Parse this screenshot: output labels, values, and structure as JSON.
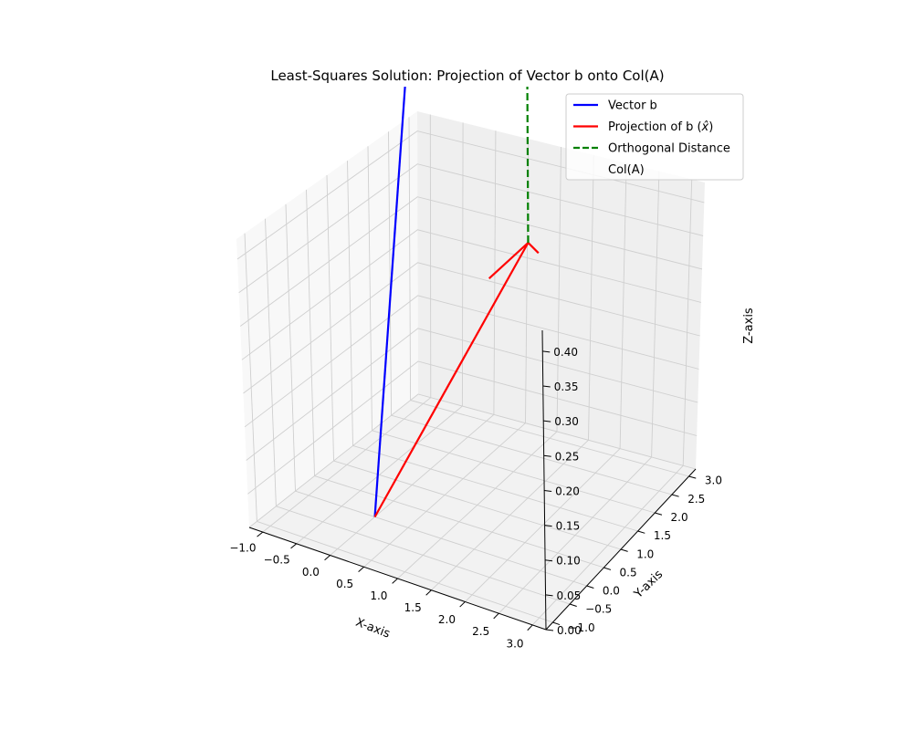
{
  "chart_data": {
    "type": "line",
    "title": "Least-Squares Solution: Projection of Vector b onto Col(A)",
    "xlabel": "X-axis",
    "ylabel": "Y-axis",
    "zlabel": "Z-axis",
    "xlim": [
      -1.2,
      3.2
    ],
    "ylim": [
      -1.2,
      3.2
    ],
    "zlim": [
      0,
      0.43
    ],
    "x_ticks": [
      "−1.0",
      "−0.5",
      "0.0",
      "0.5",
      "1.0",
      "1.5",
      "2.0",
      "2.5",
      "3.0"
    ],
    "y_ticks": [
      "−1.0",
      "−0.5",
      "0.0",
      "0.5",
      "1.0",
      "1.5",
      "2.0",
      "2.5",
      "3.0"
    ],
    "z_ticks": [
      "0.00",
      "0.05",
      "0.10",
      "0.15",
      "0.20",
      "0.25",
      "0.30",
      "0.35",
      "0.40"
    ],
    "grid": true,
    "legend_position": "top-right",
    "series": [
      {
        "name": "Vector b",
        "color": "#0000ff",
        "style": "solid",
        "points": [
          [
            0,
            0,
            0
          ],
          [
            1,
            2,
            3
          ]
        ]
      },
      {
        "name": "Projection of b ($\\hat{x}$)",
        "color": "#ff0000",
        "style": "solid-arrow",
        "points": [
          [
            0,
            0,
            0
          ],
          [
            1.5,
            1.5,
            0.38
          ]
        ]
      },
      {
        "name": "Orthogonal Distance",
        "color": "#008000",
        "style": "dashed",
        "points": [
          [
            1.5,
            1.5,
            0.38
          ],
          [
            1,
            2,
            3
          ]
        ]
      },
      {
        "name": "Col(A)",
        "color": "#ffffff",
        "style": "none",
        "points": []
      }
    ],
    "legend": [
      {
        "label": "Vector b",
        "color": "#0000ff",
        "style": "solid"
      },
      {
        "label": "Projection of b (",
        "label_math": "x̂",
        "label_suffix": ")",
        "color": "#ff0000",
        "style": "solid"
      },
      {
        "label": "Orthogonal Distance",
        "color": "#008000",
        "style": "dashed"
      },
      {
        "label": "Col(A)",
        "color": "none",
        "style": "none"
      }
    ]
  }
}
